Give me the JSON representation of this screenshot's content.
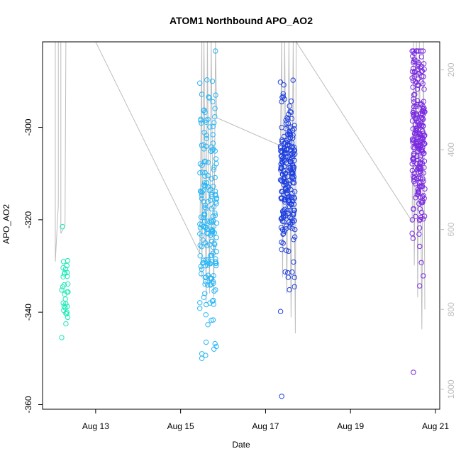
{
  "chart_data": {
    "type": "scatter",
    "title": "ATOM1 Northbound APO_AO2",
    "xlabel": "Date",
    "ylabel": "APO_AO2",
    "x_ticks": [
      "Aug 13",
      "Aug 15",
      "Aug 17",
      "Aug 19",
      "Aug 21"
    ],
    "x_tick_days": [
      13,
      15,
      17,
      19,
      21
    ],
    "xlim_days": [
      11.75,
      21.1
    ],
    "ylim": [
      -361,
      -281.5
    ],
    "y_ticks": [
      -360,
      -340,
      -320,
      -300
    ],
    "y2_ticks": [
      200,
      400,
      600,
      800,
      1000
    ],
    "y2lim": [
      1050,
      130
    ],
    "grid": false,
    "colors": {
      "line": "#bdbdbd",
      "group1": "#1de9b6",
      "group2": "#29b6f6",
      "group3": "#1e3fe0",
      "group4": "#7a2be2"
    },
    "groups": [
      {
        "day_range": [
          12.2,
          12.35
        ],
        "y_mean": -334,
        "y_sd": 4,
        "n": 28,
        "color_key": "group1",
        "outliers": [
          [
            12.22,
            -321.5
          ],
          [
            12.2,
            -345.5
          ],
          [
            12.3,
            -342.5
          ]
        ]
      },
      {
        "day_range": [
          15.45,
          15.85
        ],
        "y_mean": -318,
        "y_sd": 13,
        "n": 190,
        "color_key": "group2",
        "outliers": [
          [
            15.5,
            -350
          ],
          [
            15.5,
            -349
          ],
          [
            15.6,
            -346.5
          ]
        ]
      },
      {
        "day_range": [
          17.35,
          17.7
        ],
        "y_mean": -312,
        "y_sd": 8,
        "n": 230,
        "color_key": "group3",
        "outliers": [
          [
            17.38,
            -358.2
          ],
          [
            17.68,
            -334.5
          ],
          [
            17.48,
            -298.5
          ]
        ]
      },
      {
        "day_range": [
          20.45,
          20.75
        ],
        "y_mean": -303,
        "y_sd": 11,
        "n": 240,
        "color_key": "group4",
        "outliers": [
          [
            20.48,
            -353
          ],
          [
            20.5,
            -284
          ],
          [
            20.45,
            -283.5
          ]
        ]
      }
    ],
    "secondary_line": [
      [
        12.05,
        130
      ],
      [
        12.05,
        680
      ],
      [
        12.12,
        540
      ],
      [
        12.12,
        130
      ],
      [
        12.18,
        130
      ],
      [
        12.18,
        610
      ],
      [
        12.28,
        590
      ],
      [
        12.3,
        130
      ],
      [
        13.0,
        130
      ],
      [
        15.45,
        660
      ],
      [
        15.5,
        130
      ],
      [
        15.5,
        720
      ],
      [
        15.55,
        130
      ],
      [
        15.6,
        780
      ],
      [
        15.63,
        130
      ],
      [
        15.68,
        760
      ],
      [
        15.72,
        130
      ],
      [
        15.78,
        770
      ],
      [
        15.82,
        130
      ],
      [
        15.85,
        320
      ],
      [
        17.35,
        390
      ],
      [
        17.38,
        130
      ],
      [
        17.4,
        720
      ],
      [
        17.45,
        130
      ],
      [
        17.5,
        760
      ],
      [
        17.55,
        130
      ],
      [
        17.6,
        820
      ],
      [
        17.65,
        130
      ],
      [
        17.7,
        860
      ],
      [
        17.72,
        130
      ],
      [
        20.45,
        580
      ],
      [
        20.48,
        130
      ],
      [
        20.5,
        690
      ],
      [
        20.55,
        130
      ],
      [
        20.58,
        770
      ],
      [
        20.62,
        130
      ],
      [
        20.68,
        850
      ],
      [
        20.72,
        130
      ],
      [
        20.75,
        800
      ]
    ]
  }
}
